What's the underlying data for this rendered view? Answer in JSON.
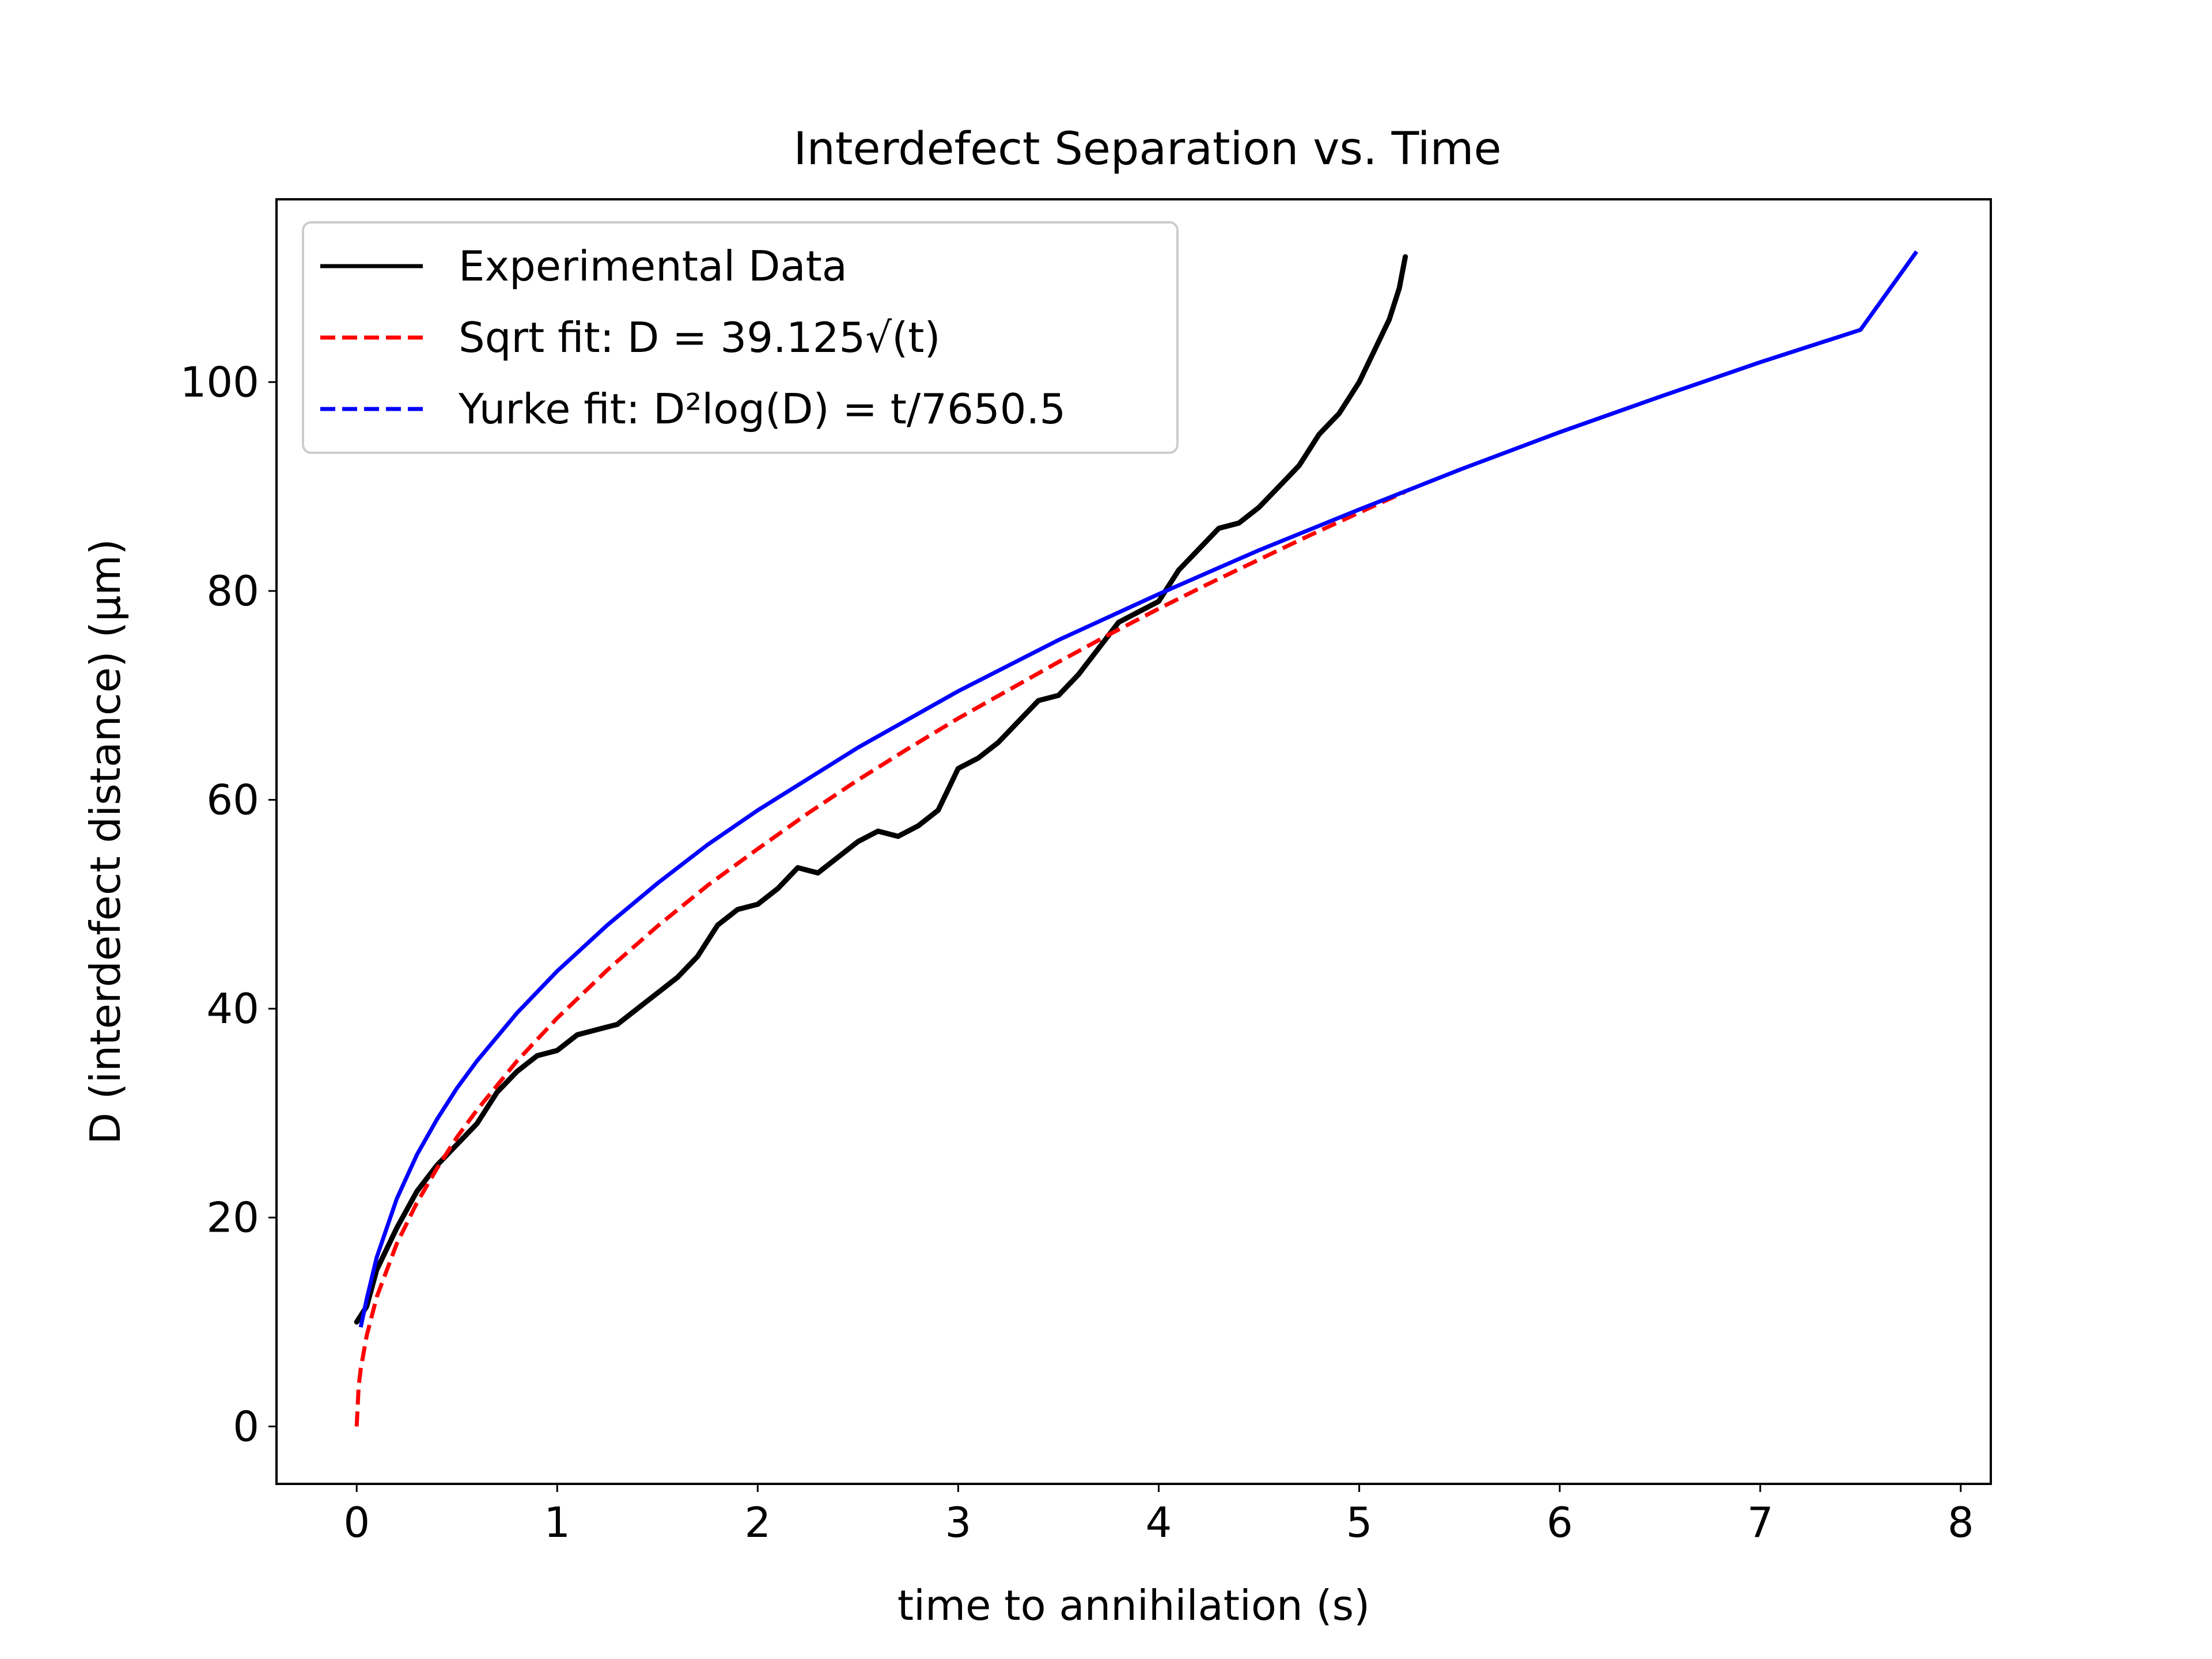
{
  "chart_data": {
    "type": "line",
    "title": "Interdefect Separation vs. Time",
    "xlabel": "time to annihilation (s)",
    "ylabel": "D (interdefect distance) (µm)",
    "xlim": [
      -0.4,
      8.15
    ],
    "ylim": [
      -5.5,
      117.5
    ],
    "xticks": [
      0,
      1,
      2,
      3,
      4,
      5,
      6,
      7,
      8
    ],
    "yticks": [
      0,
      20,
      40,
      60,
      80,
      100
    ],
    "grid": false,
    "legend_position": "top-left",
    "colors": {
      "experimental": "#000000",
      "sqrt": "#ff0000",
      "yurke": "#0000ff"
    },
    "series": [
      {
        "name": "Experimental Data",
        "style": "solid",
        "x": [
          0.0,
          0.05,
          0.1,
          0.2,
          0.3,
          0.4,
          0.5,
          0.6,
          0.7,
          0.8,
          0.9,
          1.0,
          1.1,
          1.2,
          1.3,
          1.4,
          1.5,
          1.6,
          1.7,
          1.8,
          1.9,
          2.0,
          2.1,
          2.2,
          2.3,
          2.4,
          2.5,
          2.6,
          2.7,
          2.8,
          2.9,
          3.0,
          3.1,
          3.2,
          3.3,
          3.4,
          3.5,
          3.6,
          3.7,
          3.8,
          3.9,
          4.0,
          4.1,
          4.2,
          4.3,
          4.4,
          4.5,
          4.6,
          4.7,
          4.8,
          4.9,
          5.0,
          5.1,
          5.15,
          5.2,
          5.23
        ],
        "y": [
          10.0,
          11.5,
          15.0,
          19.0,
          22.5,
          25.0,
          27.0,
          29.0,
          32.0,
          34.0,
          35.5,
          36.0,
          37.5,
          38.0,
          38.5,
          40.0,
          41.5,
          43.0,
          45.0,
          48.0,
          49.5,
          50.0,
          51.5,
          53.5,
          53.0,
          54.5,
          56.0,
          57.0,
          56.5,
          57.5,
          59.0,
          63.0,
          64.0,
          65.5,
          67.5,
          69.5,
          70.0,
          72.0,
          74.5,
          77.0,
          78.0,
          79.0,
          82.0,
          84.0,
          86.0,
          86.5,
          88.0,
          90.0,
          92.0,
          95.0,
          97.0,
          100.0,
          104.0,
          106.0,
          109.0,
          112.0
        ]
      },
      {
        "name": "Sqrt fit: D = 39.125√(t)",
        "style": "dashed",
        "x": [
          0.0,
          0.01,
          0.02,
          0.05,
          0.1,
          0.2,
          0.3,
          0.4,
          0.5,
          0.6,
          0.8,
          1.0,
          1.25,
          1.5,
          1.75,
          2.0,
          2.25,
          2.5,
          2.75,
          3.0,
          3.25,
          3.5,
          3.75,
          4.0,
          4.25,
          4.5,
          4.75,
          5.0,
          5.23
        ],
        "y": [
          0.0,
          3.9,
          5.5,
          8.7,
          12.4,
          17.5,
          21.4,
          24.7,
          27.7,
          30.3,
          35.0,
          39.1,
          43.7,
          47.9,
          51.8,
          55.3,
          58.7,
          61.9,
          64.9,
          67.8,
          70.5,
          73.2,
          75.8,
          78.3,
          80.7,
          83.0,
          85.3,
          87.5,
          89.5
        ]
      },
      {
        "name": "Yurke fit: D²log(D) = t/7650.5",
        "style": "dashed",
        "x": [
          0.02,
          0.05,
          0.1,
          0.2,
          0.3,
          0.4,
          0.5,
          0.6,
          0.8,
          1.0,
          1.25,
          1.5,
          1.75,
          2.0,
          2.5,
          3.0,
          3.5,
          4.0,
          4.5,
          5.0,
          5.5,
          6.0,
          6.5,
          7.0,
          7.5,
          7.78
        ],
        "y": [
          9.5,
          12.2,
          16.2,
          21.8,
          26.0,
          29.4,
          32.4,
          35.0,
          39.6,
          43.6,
          48.0,
          52.0,
          55.7,
          59.0,
          65.0,
          70.4,
          75.3,
          79.7,
          83.9,
          87.8,
          91.6,
          95.2,
          98.6,
          101.9,
          105.0,
          112.5
        ]
      }
    ]
  }
}
